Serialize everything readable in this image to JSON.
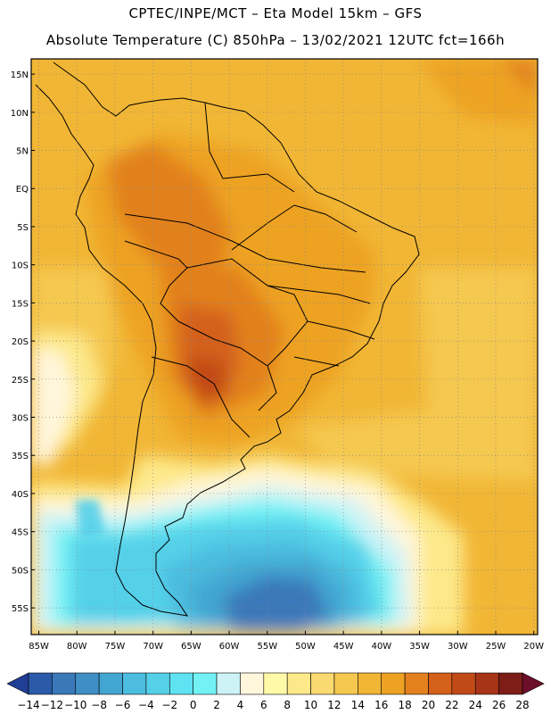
{
  "header": {
    "line1": "CPTEC/INPE/MCT –  Eta Model 15km – GFS",
    "line2": "Absolute Temperature (C) 850hPa – 13/02/2021 12UTC fct=166h"
  },
  "map": {
    "lat_labels": [
      "15N",
      "10N",
      "5N",
      "EQ",
      "5S",
      "10S",
      "15S",
      "20S",
      "25S",
      "30S",
      "35S",
      "40S",
      "45S",
      "50S",
      "55S"
    ],
    "lon_labels": [
      "85W",
      "80W",
      "75W",
      "70W",
      "65W",
      "60W",
      "55W",
      "50W",
      "45W",
      "40W",
      "35W",
      "30W",
      "25W",
      "20W"
    ]
  },
  "legend": {
    "labels": [
      "-14",
      "-12",
      "-10",
      "-8",
      "-6",
      "-4",
      "-2",
      "0",
      "2",
      "4",
      "6",
      "8",
      "10",
      "12",
      "14",
      "16",
      "18",
      "20",
      "22",
      "24",
      "26",
      "28"
    ],
    "colors": [
      "#213e96",
      "#2a5aa8",
      "#3a78b9",
      "#3f8fc5",
      "#43a6d2",
      "#4cbcdf",
      "#55d0e9",
      "#5fe3f2",
      "#73f2f5",
      "#cdf3f6",
      "#fff6dc",
      "#fffaa8",
      "#fde98a",
      "#f9d970",
      "#f5c84f",
      "#f1b635",
      "#eda224",
      "#e2811e",
      "#d4601a",
      "#c24a17",
      "#a83418",
      "#7d1d18",
      "#6d0f2a"
    ]
  }
}
